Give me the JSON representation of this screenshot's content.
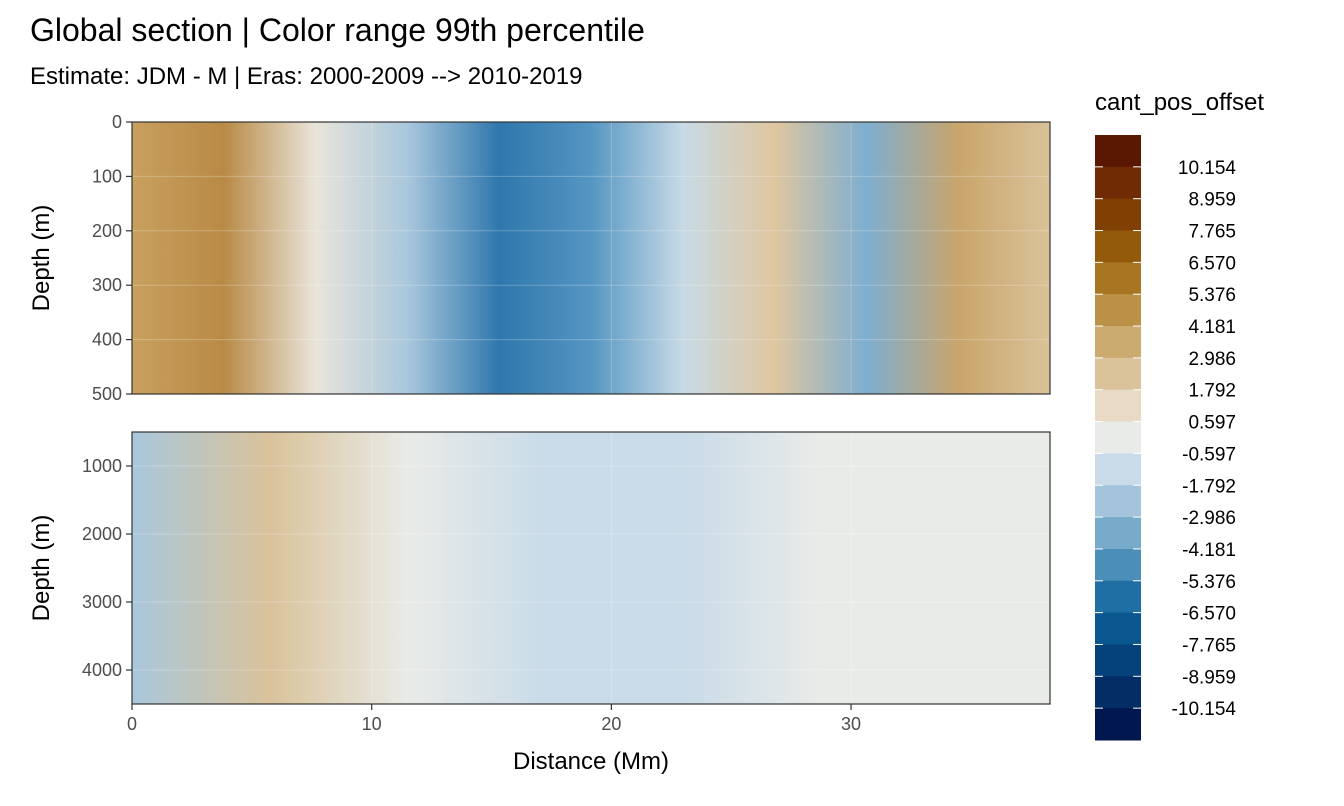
{
  "chart_data": {
    "type": "heatmap",
    "title": "Global section | Color range 99th percentile",
    "subtitle": "Estimate: JDM - M | Eras: 2000-2009 --> 2010-2019",
    "xlabel": "Distance (Mm)",
    "ylabel": "Depth (m)",
    "xlim": [
      0,
      38.3
    ],
    "x_ticks": [
      0,
      10,
      20,
      30
    ],
    "panels": [
      {
        "ylim": [
          0,
          500
        ],
        "y_ticks": [
          0,
          100,
          200,
          300,
          400,
          500
        ],
        "y_reversed": true
      },
      {
        "ylim": [
          500,
          4500
        ],
        "y_ticks": [
          1000,
          2000,
          3000,
          4000
        ],
        "y_reversed": true
      }
    ],
    "legend_title": "cant_pos_offset",
    "legend_breaks": [
      "10.154",
      "8.959",
      "7.765",
      "6.570",
      "5.376",
      "4.181",
      "2.986",
      "1.792",
      "0.597",
      "-0.597",
      "-1.792",
      "-2.986",
      "-4.181",
      "-5.376",
      "-6.570",
      "-7.765",
      "-8.959",
      "-10.154"
    ],
    "legend_colors": [
      "#5a1701",
      "#6f2b03",
      "#814003",
      "#945a0b",
      "#a87622",
      "#bb9148",
      "#cbab70",
      "#dac39b",
      "#e8dac4",
      "#e9ebe8",
      "#c9dbe8",
      "#a3c4da",
      "#78aaca",
      "#4b8eb8",
      "#1f6fa4",
      "#0a5790",
      "#05417a",
      "#032d64",
      "#01174f"
    ],
    "grid": true,
    "legend_position": "right"
  }
}
